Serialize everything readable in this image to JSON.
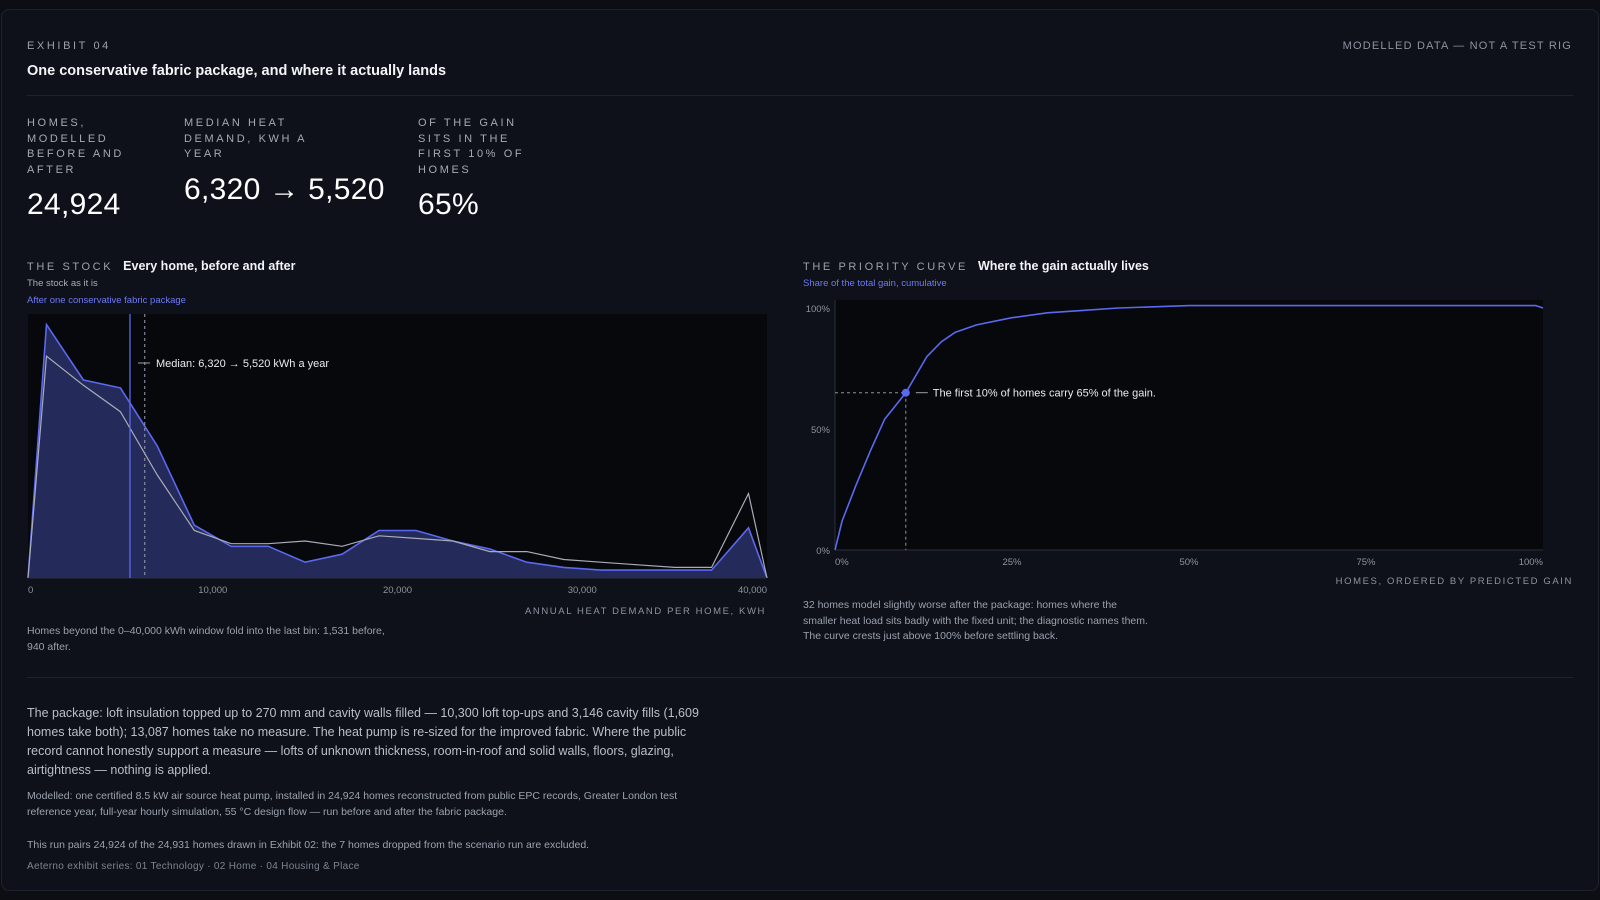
{
  "header": {
    "eyebrow": "EXHIBIT 04",
    "title": "One conservative fabric package, and where it actually lands",
    "note": "MODELLED DATA — NOT A TEST RIG"
  },
  "kpis": [
    {
      "label": "HOMES, MODELLED BEFORE AND AFTER",
      "value": "24,924"
    },
    {
      "label": "MEDIAN HEAT DEMAND, KWH A YEAR",
      "value": "6,320 → 5,520"
    },
    {
      "label": "OF THE GAIN SITS IN THE FIRST 10% OF HOMES",
      "value": "65%"
    }
  ],
  "stock_panel": {
    "eyebrow": "THE STOCK",
    "title": "Every home, before and after",
    "legend_before": "The stock as it is",
    "legend_after": "After one conservative fabric package",
    "x_caption": "ANNUAL HEAT DEMAND PER HOME, KWH",
    "footnote": "Homes beyond the 0–40,000 kWh window fold into the last bin: 1,531 before, 940 after."
  },
  "curve_panel": {
    "eyebrow": "THE PRIORITY CURVE",
    "title": "Where the gain actually lives",
    "legend": "Share of the total gain, cumulative",
    "x_caption": "HOMES, ORDERED BY PREDICTED GAIN",
    "footnote": "32 homes model slightly worse after the package: homes where the smaller heat load sits badly with the fixed unit; the diagnostic names them. The curve crests just above 100% before settling back."
  },
  "footer": {
    "package": "The package: loft insulation topped up to 270 mm and cavity walls filled — 10,300 loft top-ups and 3,146 cavity fills (1,609 homes take both); 13,087 homes take no measure. The heat pump is re-sized for the improved fabric. Where the public record cannot honestly support a measure — lofts of unknown thickness, room-in-roof and solid walls, floors, glazing, airtightness — nothing is applied.",
    "modelled": "Modelled: one certified 8.5 kW air source heat pump, installed in 24,924 homes reconstructed from public EPC records, Greater London test reference year, full-year hourly simulation, 55 °C design flow — run before and after the fabric package.",
    "run": "This run pairs 24,924 of the 24,931 homes drawn in Exhibit 02: the 7 homes dropped from the scenario run are excluded.",
    "series": "Aeterno exhibit series: 01 Technology · 02 Home · 04 Housing & Place"
  },
  "colors": {
    "accent": "#5b68f0",
    "before_line": "#a8acb8",
    "plot_bg": "#07080c"
  },
  "chart_data": [
    {
      "type": "area",
      "title": "Every home, before and after",
      "xlabel": "ANNUAL HEAT DEMAND PER HOME, KWH",
      "xlim": [
        0,
        40000
      ],
      "ylim": [
        0,
        1.0
      ],
      "x_ticks": [
        {
          "v": 0,
          "label": "0"
        },
        {
          "v": 10000,
          "label": "10,000"
        },
        {
          "v": 20000,
          "label": "20,000"
        },
        {
          "v": 30000,
          "label": "30,000"
        },
        {
          "v": 40000,
          "label": "40,000"
        }
      ],
      "series": [
        {
          "name": "The stock as it is",
          "style": "line",
          "points": [
            [
              0,
              0
            ],
            [
              1000,
              0.84
            ],
            [
              3000,
              0.73
            ],
            [
              5000,
              0.63
            ],
            [
              7000,
              0.39
            ],
            [
              9000,
              0.18
            ],
            [
              11000,
              0.13
            ],
            [
              13000,
              0.13
            ],
            [
              15000,
              0.14
            ],
            [
              17000,
              0.12
            ],
            [
              19000,
              0.16
            ],
            [
              21000,
              0.15
            ],
            [
              23000,
              0.14
            ],
            [
              25000,
              0.1
            ],
            [
              27000,
              0.1
            ],
            [
              29000,
              0.07
            ],
            [
              31000,
              0.06
            ],
            [
              33000,
              0.05
            ],
            [
              35000,
              0.04
            ],
            [
              37000,
              0.04
            ],
            [
              39000,
              0.32
            ],
            [
              40000,
              0
            ]
          ]
        },
        {
          "name": "After one conservative fabric package",
          "style": "area",
          "points": [
            [
              0,
              0
            ],
            [
              1000,
              0.96
            ],
            [
              3000,
              0.75
            ],
            [
              5000,
              0.72
            ],
            [
              7000,
              0.5
            ],
            [
              9000,
              0.2
            ],
            [
              11000,
              0.12
            ],
            [
              13000,
              0.12
            ],
            [
              15000,
              0.06
            ],
            [
              17000,
              0.09
            ],
            [
              19000,
              0.18
            ],
            [
              21000,
              0.18
            ],
            [
              23000,
              0.14
            ],
            [
              25000,
              0.11
            ],
            [
              27000,
              0.06
            ],
            [
              29000,
              0.04
            ],
            [
              31000,
              0.03
            ],
            [
              33000,
              0.03
            ],
            [
              35000,
              0.03
            ],
            [
              37000,
              0.03
            ],
            [
              39000,
              0.19
            ],
            [
              40000,
              0
            ]
          ]
        }
      ],
      "medians": {
        "before": 6320,
        "after": 5520
      },
      "annotation": "Median: 6,320 → 5,520 kWh a year",
      "footnote": "Homes beyond the 0–40,000 kWh window fold into the last bin: 1,531 before, 940 after."
    },
    {
      "type": "line",
      "title": "Where the gain actually lives",
      "xlabel": "HOMES, ORDERED BY PREDICTED GAIN",
      "ylabel": "Share of the total gain, cumulative",
      "xlim": [
        0,
        100
      ],
      "ylim": [
        0,
        100
      ],
      "x_ticks": [
        {
          "v": 0,
          "label": "0%"
        },
        {
          "v": 25,
          "label": "25%"
        },
        {
          "v": 50,
          "label": "50%"
        },
        {
          "v": 75,
          "label": "75%"
        },
        {
          "v": 100,
          "label": "100%"
        }
      ],
      "y_ticks": [
        {
          "v": 0,
          "label": "0%"
        },
        {
          "v": 50,
          "label": "50%"
        },
        {
          "v": 100,
          "label": "100%"
        }
      ],
      "series": [
        {
          "name": "Share of the total gain, cumulative",
          "points": [
            [
              0,
              0
            ],
            [
              1,
              12
            ],
            [
              3,
              27
            ],
            [
              5,
              41
            ],
            [
              7,
              54
            ],
            [
              10,
              65
            ],
            [
              13,
              80
            ],
            [
              15,
              86
            ],
            [
              17,
              90
            ],
            [
              20,
              93
            ],
            [
              25,
              96
            ],
            [
              30,
              98
            ],
            [
              35,
              99
            ],
            [
              40,
              100
            ],
            [
              50,
              101
            ],
            [
              60,
              101
            ],
            [
              70,
              101
            ],
            [
              80,
              101
            ],
            [
              90,
              101
            ],
            [
              97,
              101
            ],
            [
              99,
              101
            ],
            [
              100,
              100
            ]
          ]
        }
      ],
      "highlight": {
        "x": 10,
        "y": 65
      },
      "annotation": "The first 10% of homes carry 65% of the gain."
    }
  ]
}
